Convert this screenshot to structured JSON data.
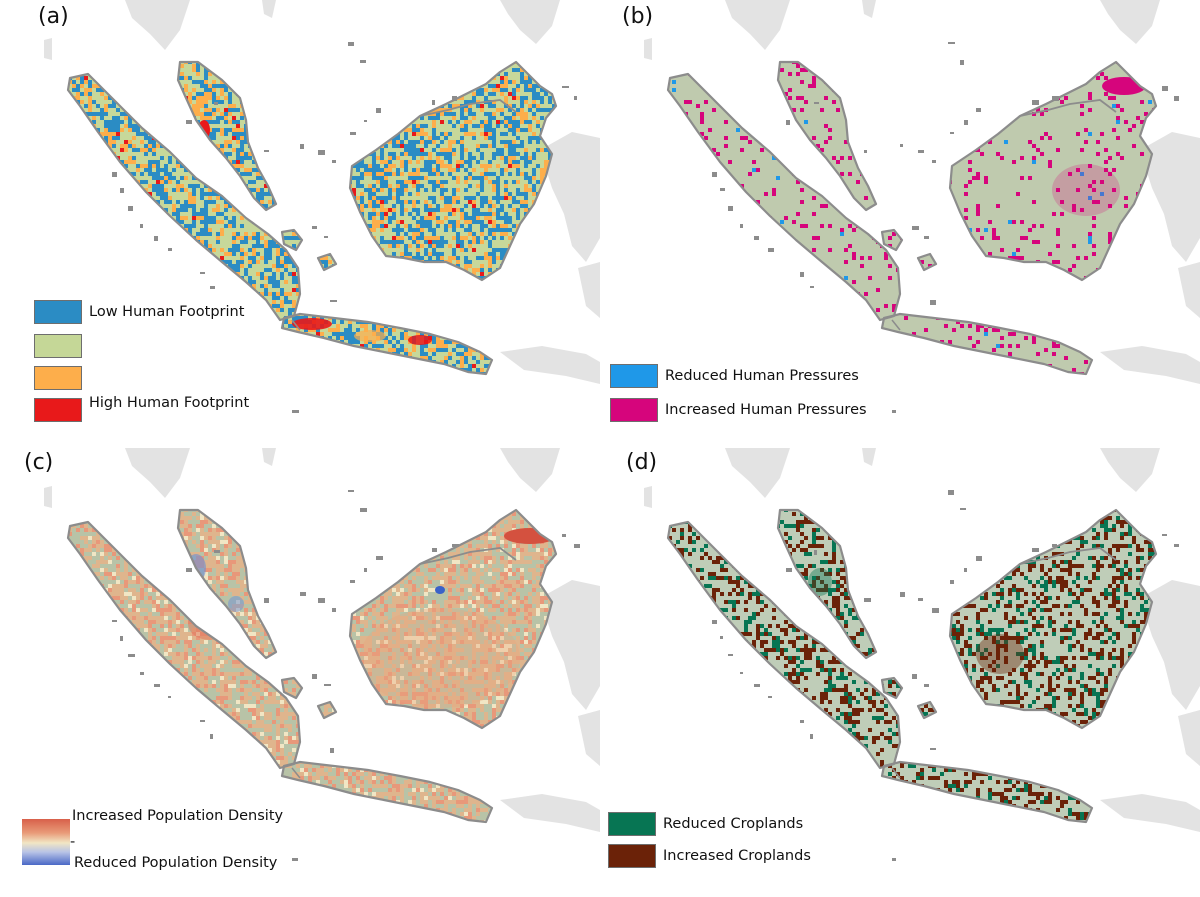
{
  "panels": [
    {
      "label": "(a)",
      "legend": [
        {
          "color": "#2b8cc4",
          "text": "Low Human Footprint"
        },
        {
          "color": "#c5d797",
          "text": ""
        },
        {
          "color": "#fdae4b",
          "text": ""
        },
        {
          "color": "#e8191a",
          "text": "High Human Footprint"
        }
      ]
    },
    {
      "label": "(b)",
      "legend": [
        {
          "color": "#1f98e8",
          "text": "Reduced Human Pressures"
        },
        {
          "color": "#d6057c",
          "text": "Increased Human Pressures"
        }
      ]
    },
    {
      "label": "(c)",
      "legend": {
        "top_text": "Increased Population Density",
        "mid_text": "-",
        "bottom_text": "Reduced Population Density"
      }
    },
    {
      "label": "(d)",
      "legend": [
        {
          "color": "#077553",
          "text": "Reduced Croplands"
        },
        {
          "color": "#6b2208",
          "text": "Increased Croplands"
        }
      ]
    }
  ],
  "colors": {
    "background_land": "#e3e3e3",
    "region_outline": "#8c8c8c",
    "terrain_base": "#bfcaae"
  }
}
